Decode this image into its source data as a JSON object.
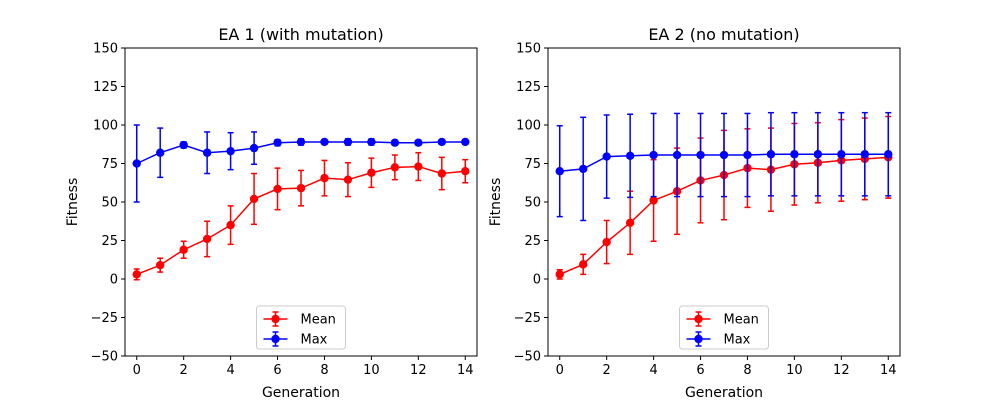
{
  "chart_data": [
    {
      "type": "line",
      "title": "EA 1 (with mutation)",
      "xlabel": "Generation",
      "ylabel": "Fitness",
      "xlim": [
        -0.5,
        14.5
      ],
      "ylim": [
        -50,
        150
      ],
      "xticks": [
        0,
        2,
        4,
        6,
        8,
        10,
        12,
        14
      ],
      "yticks": [
        -50,
        -25,
        0,
        25,
        50,
        75,
        100,
        125,
        150
      ],
      "grid": false,
      "legend": "bottom-center",
      "x": [
        0,
        1,
        2,
        3,
        4,
        5,
        6,
        7,
        8,
        9,
        10,
        11,
        12,
        13,
        14
      ],
      "series": [
        {
          "name": "Mean",
          "color": "#ff0000",
          "values": [
            3,
            9,
            19,
            26,
            35,
            52,
            58.5,
            59,
            65.5,
            64.5,
            69,
            72.5,
            73,
            68.5,
            70
          ],
          "errors": [
            3.5,
            4.5,
            5.5,
            11.5,
            12.5,
            16.5,
            13.5,
            11.5,
            11.5,
            11,
            9.5,
            8,
            9,
            10.5,
            7.5
          ]
        },
        {
          "name": "Max",
          "color": "#0000ff",
          "values": [
            75,
            82,
            87,
            82,
            83,
            85,
            88.5,
            89,
            89,
            89,
            89,
            88.5,
            88.5,
            89,
            89
          ],
          "errors": [
            25,
            16,
            2,
            13.5,
            12,
            10.5,
            2,
            2,
            1.5,
            2,
            2,
            1.5,
            1.5,
            1.5,
            1.5
          ]
        }
      ]
    },
    {
      "type": "line",
      "title": "EA 2 (no mutation)",
      "xlabel": "Generation",
      "ylabel": "Fitness",
      "xlim": [
        -0.5,
        14.5
      ],
      "ylim": [
        -50,
        150
      ],
      "xticks": [
        0,
        2,
        4,
        6,
        8,
        10,
        12,
        14
      ],
      "yticks": [
        -50,
        -25,
        0,
        25,
        50,
        75,
        100,
        125,
        150
      ],
      "grid": false,
      "legend": "bottom-center",
      "x": [
        0,
        1,
        2,
        3,
        4,
        5,
        6,
        7,
        8,
        9,
        10,
        11,
        12,
        13,
        14
      ],
      "series": [
        {
          "name": "Mean",
          "color": "#ff0000",
          "values": [
            3,
            9.5,
            24,
            36.5,
            51,
            57,
            64,
            67.5,
            72,
            71,
            74.5,
            75.5,
            77,
            78,
            79
          ],
          "errors": [
            3,
            6.5,
            14,
            20.5,
            26.5,
            28,
            27.5,
            29,
            25.5,
            27,
            26.5,
            26,
            26.5,
            26.5,
            26.5
          ]
        },
        {
          "name": "Max",
          "color": "#0000ff",
          "values": [
            70,
            71.5,
            79.5,
            80,
            80.5,
            80.5,
            80.5,
            80.5,
            80.5,
            81,
            81,
            81,
            81,
            81,
            81
          ],
          "errors": [
            29.5,
            33.5,
            27,
            27,
            27,
            27,
            27,
            27,
            27,
            27,
            27,
            27,
            27,
            27,
            27
          ]
        }
      ]
    }
  ]
}
